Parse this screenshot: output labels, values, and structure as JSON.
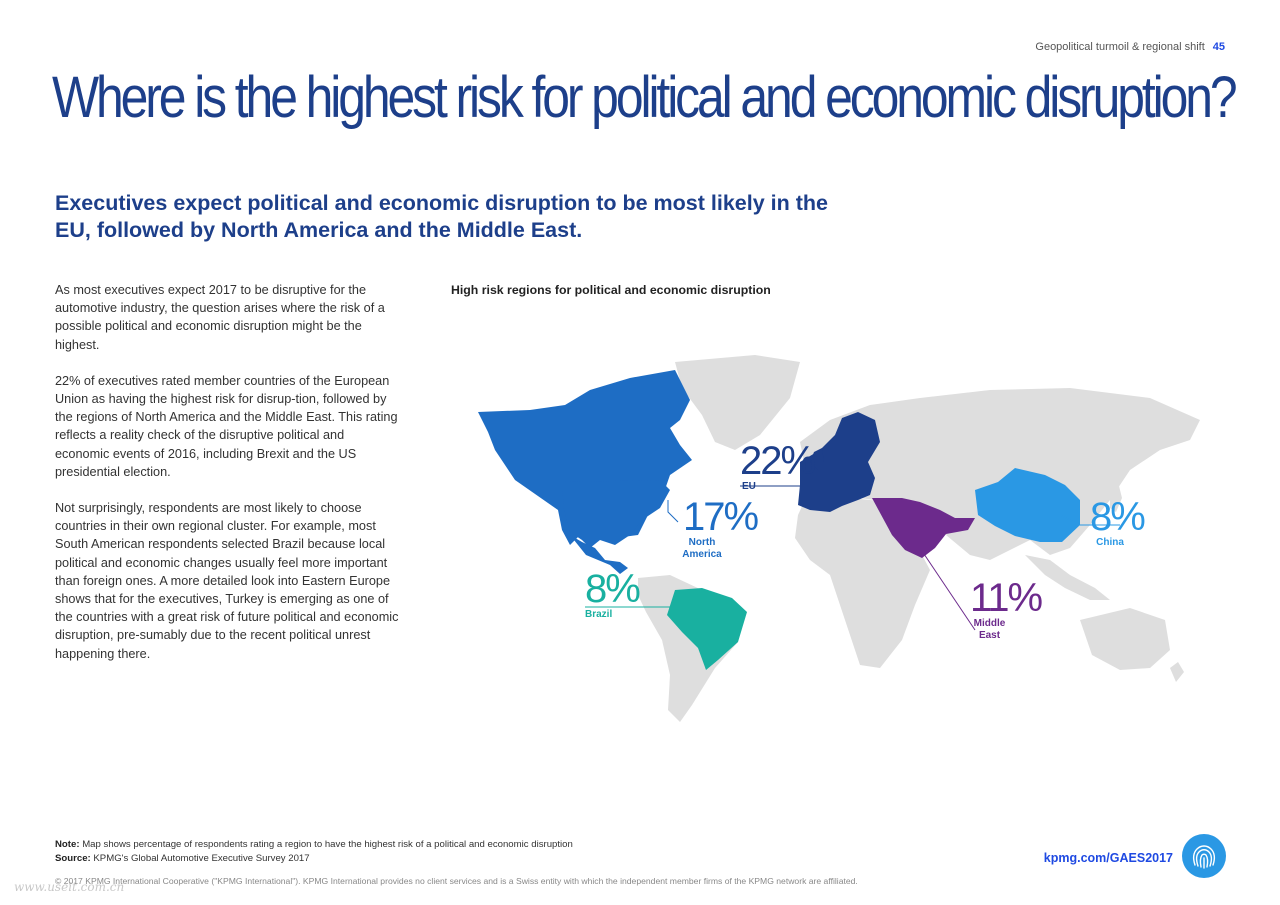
{
  "header": {
    "section": "Geopolitical turmoil & regional shift",
    "page_number": "45"
  },
  "title": "Where is the highest risk for political and economic disruption?",
  "subtitle": "Executives expect political and economic disruption to be most likely in the EU, followed by North America and the Middle East.",
  "body": {
    "p1": "As most executives expect 2017 to be disruptive for the automotive industry, the question arises where the risk of a possible political and economic disruption might be the highest.",
    "p2": "22% of executives rated member countries of the European Union as having the highest risk for disrup-tion, followed by the regions of North America and the Middle East. This rating reflects a reality check of the disruptive political and economic events of 2016, including Brexit and the US presidential election.",
    "p3": "Not surprisingly, respondents are most likely to choose countries in their own regional cluster. For example, most South American respondents selected Brazil because local political and economic changes usually feel more important than foreign ones. A more detailed look into Eastern Europe shows that for the executives, Turkey is emerging as one of the countries with a great risk of future political and economic disruption, pre-sumably due to the recent political unrest happening there."
  },
  "map": {
    "title": "High risk regions for political and economic disruption",
    "regions": [
      {
        "id": "eu",
        "value": "22%",
        "label": "EU",
        "color": "#1d3f8a"
      },
      {
        "id": "na",
        "value": "17%",
        "label": "North America",
        "color": "#1e6dc4"
      },
      {
        "id": "china",
        "value": "8%",
        "label": "China",
        "color": "#2a98e4"
      },
      {
        "id": "me",
        "value": "11%",
        "label": "Middle East",
        "color": "#6c2a8c"
      },
      {
        "id": "brazil",
        "value": "8%",
        "label": "Brazil",
        "color": "#19b0a0"
      }
    ],
    "land_color": "#dedede"
  },
  "footer": {
    "note_label": "Note:",
    "note_text": "Map shows percentage of respondents rating a region to have the highest risk of a political and economic disruption",
    "source_label": "Source:",
    "source_text": "KPMG's Global Automotive Executive Survey 2017",
    "link": "kpmg.com/GAES2017",
    "copyright": "© 2017 KPMG International Cooperative (\"KPMG International\"). KPMG International provides no client services and is a Swiss entity with which the independent member firms of the KPMG network are affiliated.",
    "watermark": "www.useit.com.cn"
  }
}
